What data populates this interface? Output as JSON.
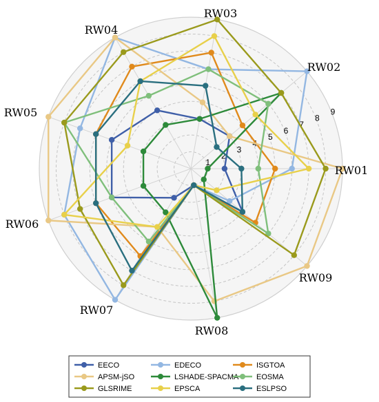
{
  "chart_data": {
    "type": "radar",
    "categories": [
      "RW01",
      "RW02",
      "RW03",
      "RW04",
      "RW05",
      "RW06",
      "RW07",
      "RW08",
      "RW09"
    ],
    "radial_ticks": [
      "1",
      "2",
      "3",
      "4",
      "5",
      "6",
      "7",
      "8",
      "9"
    ],
    "rlim": [
      0,
      9
    ],
    "grid": true,
    "legend_position": "bottom",
    "series": [
      {
        "name": "EECO",
        "color": "#3f5fa8",
        "values": [
          2,
          3,
          3,
          4,
          5,
          5,
          2,
          1,
          4
        ]
      },
      {
        "name": "EDECO",
        "color": "#93b7e2",
        "values": [
          6,
          9,
          6,
          9,
          7,
          8,
          9,
          1,
          3
        ]
      },
      {
        "name": "ISGTOA",
        "color": "#e08a1c",
        "values": [
          5,
          4,
          7,
          7,
          6,
          6,
          6,
          1,
          5
        ]
      },
      {
        "name": "APSM-jSO",
        "color": "#e9c885",
        "values": [
          9,
          3,
          4,
          9,
          9,
          9,
          4,
          8,
          9
        ]
      },
      {
        "name": "LSHADE-SPACMA",
        "color": "#2d8a3a",
        "values": [
          1,
          7,
          3,
          3,
          3,
          3,
          3,
          9,
          1
        ]
      },
      {
        "name": "EOSMA",
        "color": "#7fbf7b",
        "values": [
          4,
          6,
          6,
          5,
          8,
          5,
          5,
          1,
          6
        ]
      },
      {
        "name": "GLSRIME",
        "color": "#9a9a1c",
        "values": [
          8,
          7,
          9,
          8,
          8,
          7,
          8,
          1,
          8
        ]
      },
      {
        "name": "EPSCA",
        "color": "#e8d04a",
        "values": [
          7,
          5,
          8,
          6,
          4,
          8,
          4,
          1,
          2
        ]
      },
      {
        "name": "ESLPSO",
        "color": "#2a6f7f",
        "values": [
          3,
          2,
          5,
          6,
          6,
          6,
          7,
          1,
          4
        ]
      }
    ]
  }
}
